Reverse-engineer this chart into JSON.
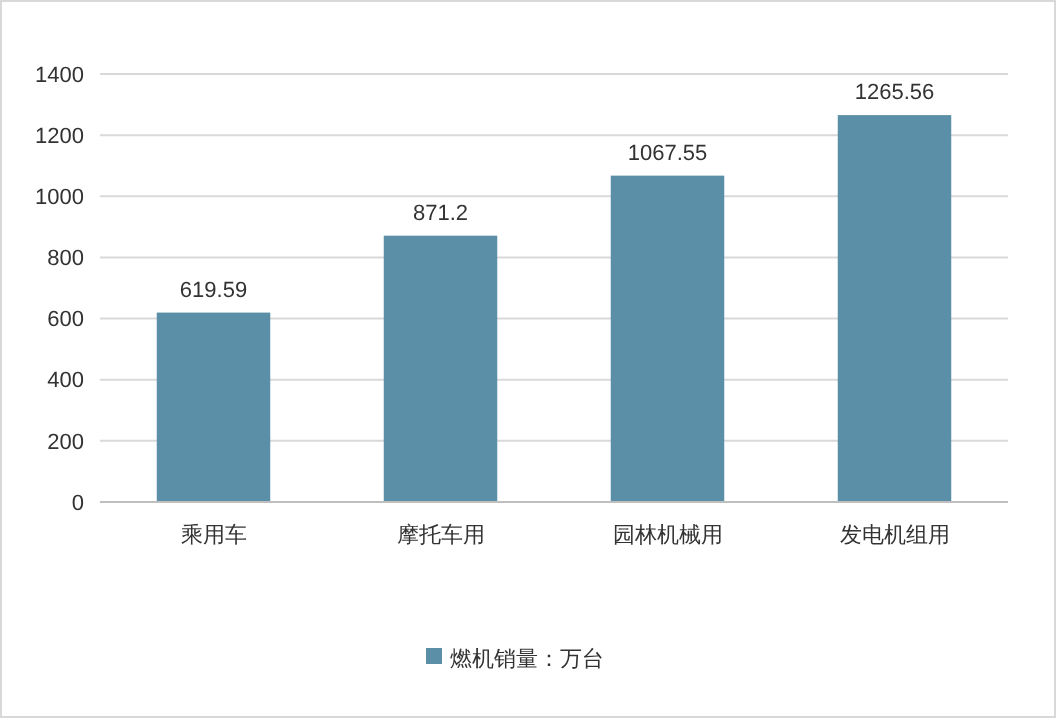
{
  "chart_data": {
    "type": "bar",
    "categories": [
      "乘用车",
      "摩托车用",
      "园林机械用",
      "发电机组用"
    ],
    "series": [
      {
        "name": "燃机销量：万台",
        "color": "#5b8fa8",
        "values": [
          619.59,
          871.2,
          1067.55,
          1265.56
        ]
      }
    ],
    "ylim": [
      0,
      1400
    ],
    "yticks": [
      0,
      200,
      400,
      600,
      800,
      1000,
      1200,
      1400
    ],
    "grid": "y",
    "legend": "bottom",
    "data_labels": true
  }
}
